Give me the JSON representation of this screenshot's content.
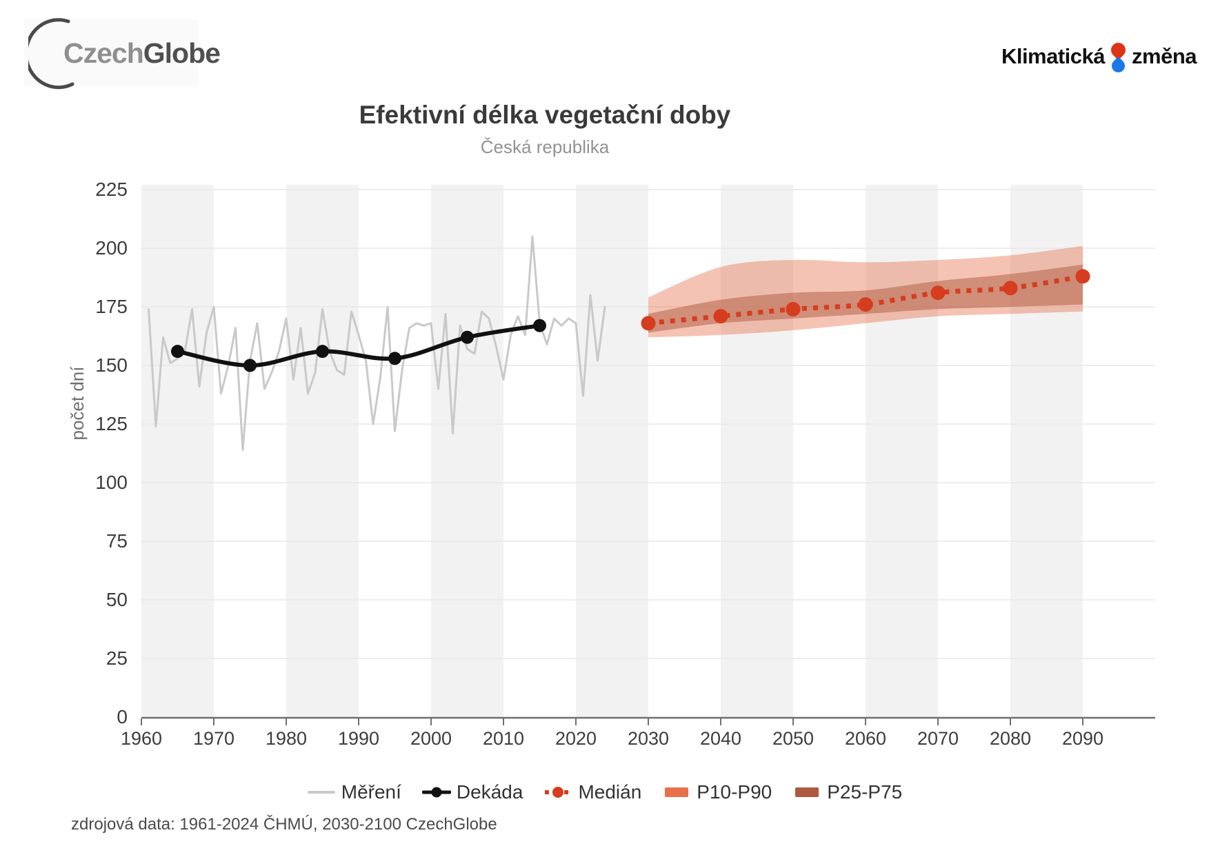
{
  "header": {
    "czechglobe_logo": {
      "text_czech": "Czech",
      "text_globe": "Globe",
      "arc_color": "#4a4a4a"
    },
    "klimaticka_logo": {
      "text_left": "Klimatická",
      "text_right": "změna",
      "drop_top_color": "#dd3415",
      "drop_bottom_color": "#1a78e6"
    }
  },
  "chart_data": {
    "type": "line",
    "title": "Efektivní délka vegetační doby",
    "subtitle": "Česká republika",
    "ylabel": "počet dní",
    "xlabel": "",
    "xlim": [
      1960,
      2100
    ],
    "ylim": [
      0,
      225
    ],
    "grid": true,
    "legend_position": "bottom",
    "x_ticks": [
      1960,
      1970,
      1980,
      1990,
      2000,
      2010,
      2020,
      2030,
      2040,
      2050,
      2060,
      2070,
      2080,
      2090
    ],
    "y_ticks": [
      0,
      25,
      50,
      75,
      100,
      125,
      150,
      175,
      200,
      225
    ],
    "background_stripe_decades": [
      1960,
      1980,
      2000,
      2020,
      2040,
      2060,
      2080
    ],
    "stripe_color": "#f2f2f2",
    "gridline_color": "#e7e7e7",
    "axis_color": "#6f6f6f",
    "tick_label_color": "#3d3d3d",
    "series": [
      {
        "id": "mereni",
        "name": "Měření",
        "type": "line",
        "color": "#c9c9c9",
        "x": [
          1961,
          1962,
          1963,
          1964,
          1965,
          1966,
          1967,
          1968,
          1969,
          1970,
          1971,
          1972,
          1973,
          1974,
          1975,
          1976,
          1977,
          1978,
          1979,
          1980,
          1981,
          1982,
          1983,
          1984,
          1985,
          1986,
          1987,
          1988,
          1989,
          1990,
          1991,
          1992,
          1993,
          1994,
          1995,
          1996,
          1997,
          1998,
          1999,
          2000,
          2001,
          2002,
          2003,
          2004,
          2005,
          2006,
          2007,
          2008,
          2009,
          2010,
          2011,
          2012,
          2013,
          2014,
          2015,
          2016,
          2017,
          2018,
          2019,
          2020,
          2021,
          2022,
          2023,
          2024
        ],
        "values": [
          174,
          124,
          162,
          151,
          153,
          156,
          174,
          141,
          164,
          175,
          138,
          150,
          166,
          114,
          152,
          168,
          140,
          147,
          156,
          170,
          144,
          166,
          138,
          147,
          174,
          156,
          148,
          146,
          173,
          163,
          152,
          125,
          145,
          175,
          122,
          148,
          166,
          168,
          167,
          168,
          140,
          172,
          121,
          167,
          157,
          155,
          173,
          170,
          158,
          144,
          163,
          171,
          163,
          205,
          168,
          159,
          170,
          167,
          170,
          168,
          137,
          180,
          152,
          175
        ]
      },
      {
        "id": "dekada",
        "name": "Dekáda",
        "type": "line_markers",
        "color": "#111111",
        "x": [
          1965,
          1975,
          1985,
          1995,
          2005,
          2015
        ],
        "values": [
          156,
          150,
          156,
          153,
          162,
          167
        ]
      },
      {
        "id": "median",
        "name": "Medián",
        "type": "dashed_markers",
        "color": "#d63d1f",
        "x": [
          2030,
          2040,
          2050,
          2060,
          2070,
          2080,
          2090
        ],
        "values": [
          168,
          171,
          174,
          176,
          181,
          183,
          188
        ]
      },
      {
        "id": "p10p90",
        "name": "P10-P90",
        "type": "band",
        "fill": "rgba(232,113,75,0.42)",
        "legend_color": "#e8714b",
        "x": [
          2030,
          2040,
          2050,
          2060,
          2070,
          2080,
          2090
        ],
        "upper": [
          179,
          192,
          195,
          194,
          195,
          197,
          201
        ],
        "lower": [
          162,
          163,
          165,
          168,
          171,
          172,
          173
        ]
      },
      {
        "id": "p25p75",
        "name": "P25-P75",
        "type": "band",
        "fill": "rgba(173,89,64,0.5)",
        "legend_color": "#ad5940",
        "x": [
          2030,
          2040,
          2050,
          2060,
          2070,
          2080,
          2090
        ],
        "upper": [
          172,
          178,
          181,
          182,
          186,
          189,
          193
        ],
        "lower": [
          164,
          168,
          170,
          172,
          174,
          175,
          176
        ]
      }
    ],
    "legend": [
      {
        "id": "mereni",
        "label": "Měření",
        "marker": "line",
        "color": "#c9c9c9"
      },
      {
        "id": "dekada",
        "label": "Dekáda",
        "marker": "line_dot",
        "color": "#111111"
      },
      {
        "id": "median",
        "label": "Medián",
        "marker": "dashed_dot",
        "color": "#d63d1f"
      },
      {
        "id": "p10p90",
        "label": "P10-P90",
        "marker": "swatch",
        "color": "#e8714b"
      },
      {
        "id": "p25p75",
        "label": "P25-P75",
        "marker": "swatch",
        "color": "#ad5940"
      }
    ]
  },
  "footer": {
    "source_text": "zdrojová data: 1961-2024 ČHMÚ, 2030-2100 CzechGlobe"
  }
}
